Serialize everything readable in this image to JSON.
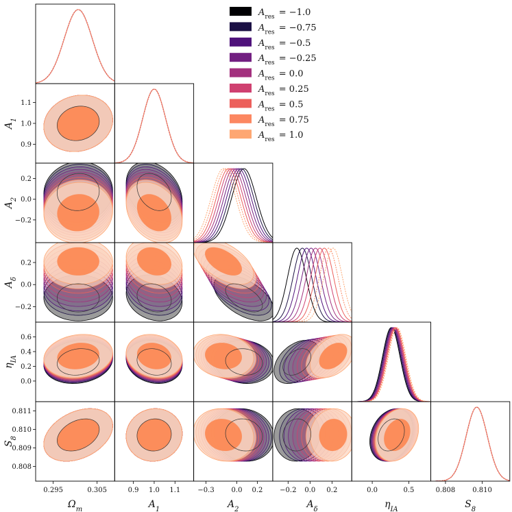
{
  "chart_data": {
    "type": "corner",
    "parameters": [
      {
        "key": "Om",
        "label": "Ωm",
        "sub": "m",
        "base": "Ω",
        "ticks": [
          "0.295",
          "0.305"
        ],
        "tick_values": [
          0.295,
          0.305
        ],
        "range": [
          0.291,
          0.309
        ],
        "mean": 0.3007,
        "sigma": 0.0032
      },
      {
        "key": "A1",
        "label": "A1",
        "sub": "1",
        "base": "A",
        "ticks": [
          "0.9",
          "1.0",
          "1.1"
        ],
        "tick_values": [
          0.9,
          1.0,
          1.1
        ],
        "range": [
          0.81,
          1.19
        ],
        "mean": 1.0,
        "sigma": 0.055
      },
      {
        "key": "A2",
        "label": "A2",
        "sub": "2",
        "base": "A",
        "ticks": [
          "−0.3",
          "0.0",
          "0.2"
        ],
        "tick_values": [
          -0.3,
          0.0,
          0.2
        ],
        "range": [
          -0.42,
          0.35
        ],
        "mean": -0.04,
        "sigma": 0.12
      },
      {
        "key": "Ad",
        "label": "Aδ",
        "sub": "δ",
        "base": "A",
        "ticks": [
          "−0.2",
          "0.0",
          "0.2"
        ],
        "tick_values": [
          -0.2,
          0.0,
          0.2
        ],
        "range": [
          -0.34,
          0.38
        ],
        "mean": 0.05,
        "sigma": 0.085
      },
      {
        "key": "eta",
        "label": "ηIA",
        "sub": "IA",
        "base": "η",
        "ticks": [
          "0.0",
          "0.5"
        ],
        "tick_values": [
          0.0,
          0.5
        ],
        "range": [
          -0.28,
          0.8
        ],
        "mean": 0.3,
        "sigma": 0.12
      },
      {
        "key": "S8",
        "label": "S8",
        "sub": "8",
        "base": "S",
        "ticks": [
          "0.808",
          "0.810"
        ],
        "tick_values": [
          0.808,
          0.81
        ],
        "range": [
          0.8072,
          0.8115
        ],
        "mean": 0.8097,
        "sigma": 0.00058
      }
    ],
    "left_ticks": {
      "A1": {
        "ticks": [
          "0.9",
          "1.0",
          "1.1"
        ],
        "tick_values": [
          0.9,
          1.0,
          1.1
        ]
      },
      "A2": {
        "ticks": [
          "−0.2",
          "0.0",
          "0.2"
        ],
        "tick_values": [
          -0.2,
          0.0,
          0.2
        ]
      },
      "Ad": {
        "ticks": [
          "−0.2",
          "0.0",
          "0.2"
        ],
        "tick_values": [
          -0.2,
          0.0,
          0.2
        ]
      },
      "eta": {
        "ticks": [
          "0.0",
          "0.2",
          "0.4",
          "0.6"
        ],
        "tick_values": [
          0.0,
          0.2,
          0.4,
          0.6
        ]
      },
      "S8": {
        "ticks": [
          "0.808",
          "0.809",
          "0.810",
          "0.811"
        ],
        "tick_values": [
          0.808,
          0.809,
          0.81,
          0.811
        ]
      }
    },
    "legend_symbol": "A",
    "legend_sub": "res",
    "legend_location": "upper-right",
    "series": [
      {
        "name": "Ares = −1.0",
        "value_label": "−1.0",
        "a_res": -1.0,
        "color": "#000004",
        "A2_mean": 0.07,
        "Ad_mean": -0.12,
        "eta_mean": 0.26,
        "filled": true
      },
      {
        "name": "Ares = −0.75",
        "value_label": "−0.75",
        "a_res": -0.75,
        "color": "#1b1044",
        "A2_mean": 0.045,
        "Ad_mean": -0.07,
        "eta_mean": 0.27,
        "filled": false
      },
      {
        "name": "Ares = −0.5",
        "value_label": "−0.5",
        "a_res": -0.5,
        "color": "#4f127b",
        "A2_mean": 0.02,
        "Ad_mean": -0.03,
        "eta_mean": 0.28,
        "filled": false
      },
      {
        "name": "Ares = −0.25",
        "value_label": "−0.25",
        "a_res": -0.25,
        "color": "#721f81",
        "A2_mean": -0.005,
        "Ad_mean": 0.01,
        "eta_mean": 0.29,
        "filled": false
      },
      {
        "name": "Ares = 0.0",
        "value_label": "0.0",
        "a_res": 0.0,
        "color": "#a3307e",
        "A2_mean": -0.03,
        "Ad_mean": 0.05,
        "eta_mean": 0.3,
        "filled": false
      },
      {
        "name": "Ares = 0.25",
        "value_label": "0.25",
        "a_res": 0.25,
        "color": "#cf4070",
        "A2_mean": -0.055,
        "Ad_mean": 0.09,
        "eta_mean": 0.31,
        "filled": false
      },
      {
        "name": "Ares = 0.5",
        "value_label": "0.5",
        "a_res": 0.5,
        "color": "#ec5f5b",
        "A2_mean": -0.08,
        "Ad_mean": 0.13,
        "eta_mean": 0.32,
        "filled": false
      },
      {
        "name": "Ares = 0.75",
        "value_label": "0.75",
        "a_res": 0.75,
        "color": "#fc8761",
        "A2_mean": -0.105,
        "Ad_mean": 0.17,
        "eta_mean": 0.33,
        "filled": true
      },
      {
        "name": "Ares = 1.0",
        "value_label": "1.0",
        "a_res": 1.0,
        "color": "#fea772",
        "A2_mean": -0.13,
        "Ad_mean": 0.21,
        "eta_mean": 0.34,
        "filled": true
      }
    ],
    "correlations": {
      "A1|Om": 0.12,
      "A2|Om": 0.05,
      "A2|A1": -0.3,
      "Ad|Om": 0.0,
      "Ad|A1": -0.2,
      "Ad|A2": -0.55,
      "eta|Om": 0.15,
      "eta|A1": -0.15,
      "eta|A2": -0.1,
      "eta|Ad": 0.4,
      "S8|Om": 0.35,
      "S8|A1": 0.05,
      "S8|A2": -0.1,
      "S8|Ad": 0.05,
      "S8|eta": 0.25
    }
  }
}
